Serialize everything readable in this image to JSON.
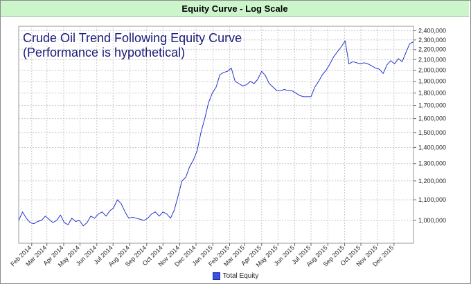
{
  "chart_data": {
    "type": "line",
    "title": "Equity Curve - Log Scale",
    "annotation_lines": [
      "Crude Oil Trend Following Equity Curve",
      "(Performance is hypothetical)"
    ],
    "y_scale": "log",
    "ylim": [
      900000,
      2450000
    ],
    "y_ticks": [
      1000000,
      1100000,
      1200000,
      1300000,
      1400000,
      1500000,
      1600000,
      1700000,
      1800000,
      1900000,
      2000000,
      2100000,
      2200000,
      2300000,
      2400000
    ],
    "y_tick_labels": [
      "1,000,000",
      "1,100,000",
      "1,200,000",
      "1,300,000",
      "1,400,000",
      "1,500,000",
      "1,600,000",
      "1,700,000",
      "1,800,000",
      "1,900,000",
      "2,000,000",
      "2,100,000",
      "2,200,000",
      "2,300,000",
      "2,400,000"
    ],
    "xlim": [
      "2014-01-08",
      "2016-01-06"
    ],
    "x_tick_dates": [
      "2014-02-01",
      "2014-03-01",
      "2014-04-01",
      "2014-05-01",
      "2014-06-01",
      "2014-07-01",
      "2014-08-01",
      "2014-09-01",
      "2014-10-01",
      "2014-11-01",
      "2014-12-01",
      "2015-01-01",
      "2015-02-01",
      "2015-03-01",
      "2015-04-01",
      "2015-05-01",
      "2015-06-01",
      "2015-07-01",
      "2015-08-01",
      "2015-09-01",
      "2015-10-01",
      "2015-11-01",
      "2015-12-01"
    ],
    "x_tick_labels": [
      "Feb 2014",
      "Mar 2014",
      "Apr 2014",
      "May 2014",
      "Jun 2014",
      "Jul 2014",
      "Aug 2014",
      "Sep 2014",
      "Oct 2014",
      "Nov 2014",
      "Dec 2014",
      "Jan 2015",
      "Feb 2015",
      "Mar 2015",
      "Apr 2015",
      "May 2015",
      "Jun 2015",
      "Jul 2015",
      "Aug 2015",
      "Sep 2015",
      "Oct 2015",
      "Nov 2015",
      "Dec 2015"
    ],
    "grid": true,
    "legend_placement": "bottom",
    "series": [
      {
        "name": "Total Equity",
        "color": "#2233cc",
        "x": [
          "2014-01-08",
          "2014-01-15",
          "2014-01-22",
          "2014-01-29",
          "2014-02-05",
          "2014-02-12",
          "2014-02-19",
          "2014-02-26",
          "2014-03-05",
          "2014-03-12",
          "2014-03-19",
          "2014-03-26",
          "2014-04-02",
          "2014-04-09",
          "2014-04-16",
          "2014-04-23",
          "2014-04-30",
          "2014-05-07",
          "2014-05-14",
          "2014-05-21",
          "2014-05-28",
          "2014-06-04",
          "2014-06-11",
          "2014-06-18",
          "2014-06-25",
          "2014-07-02",
          "2014-07-09",
          "2014-07-16",
          "2014-07-23",
          "2014-07-30",
          "2014-08-06",
          "2014-08-13",
          "2014-08-20",
          "2014-08-27",
          "2014-09-03",
          "2014-09-10",
          "2014-09-17",
          "2014-09-24",
          "2014-10-01",
          "2014-10-08",
          "2014-10-15",
          "2014-10-22",
          "2014-10-29",
          "2014-11-05",
          "2014-11-12",
          "2014-11-19",
          "2014-11-26",
          "2014-12-03",
          "2014-12-10",
          "2014-12-17",
          "2014-12-24",
          "2014-12-31",
          "2015-01-07",
          "2015-01-14",
          "2015-01-21",
          "2015-01-28",
          "2015-02-04",
          "2015-02-11",
          "2015-02-18",
          "2015-02-25",
          "2015-03-04",
          "2015-03-11",
          "2015-03-18",
          "2015-03-25",
          "2015-04-01",
          "2015-04-08",
          "2015-04-15",
          "2015-04-22",
          "2015-04-29",
          "2015-05-06",
          "2015-05-13",
          "2015-05-20",
          "2015-05-27",
          "2015-06-03",
          "2015-06-10",
          "2015-06-17",
          "2015-06-24",
          "2015-07-01",
          "2015-07-08",
          "2015-07-15",
          "2015-07-22",
          "2015-07-29",
          "2015-08-05",
          "2015-08-12",
          "2015-08-19",
          "2015-08-26",
          "2015-09-02",
          "2015-09-09",
          "2015-09-16",
          "2015-09-23",
          "2015-09-30",
          "2015-10-07",
          "2015-10-14",
          "2015-10-21",
          "2015-10-28",
          "2015-11-04",
          "2015-11-11",
          "2015-11-18",
          "2015-11-25",
          "2015-12-02",
          "2015-12-09",
          "2015-12-16",
          "2015-12-23",
          "2015-12-30",
          "2016-01-06"
        ],
        "values": [
          1000000,
          1040000,
          1010000,
          990000,
          985000,
          995000,
          1000000,
          1020000,
          1005000,
          990000,
          1000000,
          1025000,
          990000,
          980000,
          1010000,
          995000,
          1000000,
          975000,
          990000,
          1020000,
          1010000,
          1030000,
          1040000,
          1020000,
          1045000,
          1060000,
          1100000,
          1080000,
          1040000,
          1010000,
          1015000,
          1010000,
          1005000,
          1000000,
          1010000,
          1030000,
          1040000,
          1020000,
          1040000,
          1030000,
          1010000,
          1050000,
          1120000,
          1200000,
          1220000,
          1280000,
          1320000,
          1380000,
          1500000,
          1600000,
          1720000,
          1800000,
          1850000,
          1960000,
          1980000,
          1990000,
          2020000,
          1900000,
          1880000,
          1860000,
          1870000,
          1900000,
          1880000,
          1920000,
          1990000,
          1950000,
          1880000,
          1850000,
          1820000,
          1820000,
          1830000,
          1820000,
          1820000,
          1800000,
          1780000,
          1770000,
          1770000,
          1770000,
          1850000,
          1900000,
          1960000,
          2000000,
          2060000,
          2130000,
          2180000,
          2230000,
          2290000,
          2060000,
          2080000,
          2070000,
          2060000,
          2070000,
          2060000,
          2040000,
          2020000,
          2010000,
          1970000,
          2050000,
          2090000,
          2060000,
          2110000,
          2080000,
          2170000,
          2260000,
          2280000
        ]
      }
    ]
  }
}
